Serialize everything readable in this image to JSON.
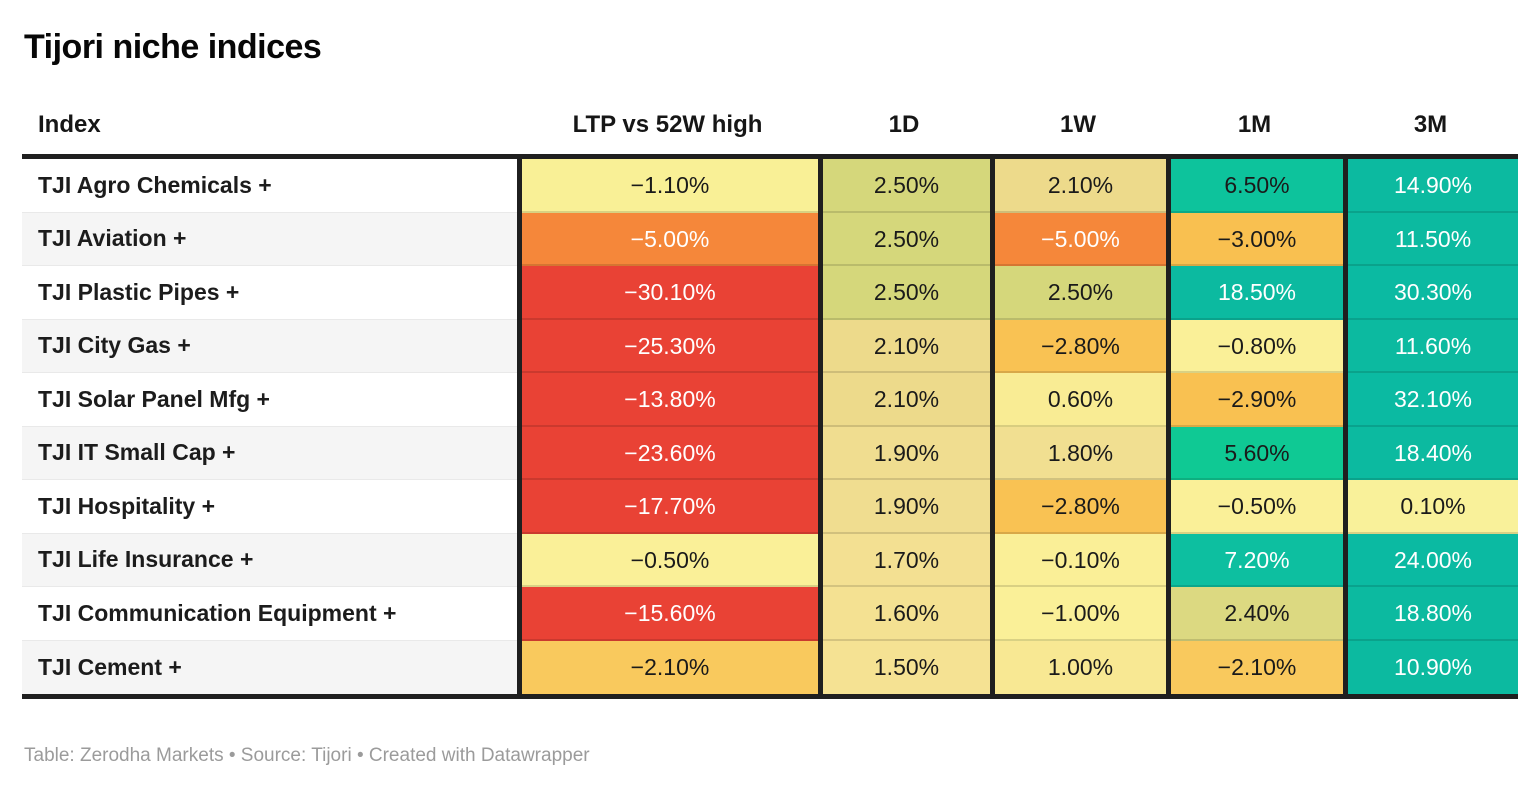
{
  "title": "Tijori niche indices",
  "header": {
    "columns": [
      "Index",
      "LTP vs 52W high",
      "1D",
      "1W",
      "1M",
      "3M"
    ]
  },
  "table": {
    "rows": [
      {
        "name": "TJI Agro Chemicals +",
        "cells": [
          {
            "v": "−1.10%",
            "bg": "#f9f096",
            "fg": "#1a1a1a"
          },
          {
            "v": "2.50%",
            "bg": "#d5d77b",
            "fg": "#1a1a1a"
          },
          {
            "v": "2.10%",
            "bg": "#edda8b",
            "fg": "#1a1a1a"
          },
          {
            "v": "6.50%",
            "bg": "#0dc39c",
            "fg": "#1a1a1a"
          },
          {
            "v": "14.90%",
            "bg": "#0cbaa0",
            "fg": "#ffffff"
          }
        ]
      },
      {
        "name": "TJI Aviation +",
        "cells": [
          {
            "v": "−5.00%",
            "bg": "#f5873a",
            "fg": "#ffffff"
          },
          {
            "v": "2.50%",
            "bg": "#d5d77b",
            "fg": "#1a1a1a"
          },
          {
            "v": "−5.00%",
            "bg": "#f5873a",
            "fg": "#ffffff"
          },
          {
            "v": "−3.00%",
            "bg": "#f9c050",
            "fg": "#1a1a1a"
          },
          {
            "v": "11.50%",
            "bg": "#0cbaa0",
            "fg": "#ffffff"
          }
        ]
      },
      {
        "name": "TJI Plastic Pipes +",
        "cells": [
          {
            "v": "−30.10%",
            "bg": "#e94235",
            "fg": "#ffffff"
          },
          {
            "v": "2.50%",
            "bg": "#d5d77b",
            "fg": "#1a1a1a"
          },
          {
            "v": "2.50%",
            "bg": "#d5d77b",
            "fg": "#1a1a1a"
          },
          {
            "v": "18.50%",
            "bg": "#0cbaa0",
            "fg": "#ffffff"
          },
          {
            "v": "30.30%",
            "bg": "#0bbaa2",
            "fg": "#ffffff"
          }
        ]
      },
      {
        "name": "TJI City Gas +",
        "cells": [
          {
            "v": "−25.30%",
            "bg": "#e94235",
            "fg": "#ffffff"
          },
          {
            "v": "2.10%",
            "bg": "#edda8b",
            "fg": "#1a1a1a"
          },
          {
            "v": "−2.80%",
            "bg": "#f9c253",
            "fg": "#1a1a1a"
          },
          {
            "v": "−0.80%",
            "bg": "#faf098",
            "fg": "#1a1a1a"
          },
          {
            "v": "11.60%",
            "bg": "#0cbaa0",
            "fg": "#ffffff"
          }
        ]
      },
      {
        "name": "TJI Solar Panel Mfg +",
        "cells": [
          {
            "v": "−13.80%",
            "bg": "#e94235",
            "fg": "#ffffff"
          },
          {
            "v": "2.10%",
            "bg": "#edda8b",
            "fg": "#1a1a1a"
          },
          {
            "v": "0.60%",
            "bg": "#f9ec94",
            "fg": "#1a1a1a"
          },
          {
            "v": "−2.90%",
            "bg": "#f9c151",
            "fg": "#1a1a1a"
          },
          {
            "v": "32.10%",
            "bg": "#0bbaa2",
            "fg": "#ffffff"
          }
        ]
      },
      {
        "name": "TJI IT Small Cap +",
        "cells": [
          {
            "v": "−23.60%",
            "bg": "#e94235",
            "fg": "#ffffff"
          },
          {
            "v": "1.90%",
            "bg": "#f0dd90",
            "fg": "#1a1a1a"
          },
          {
            "v": "1.80%",
            "bg": "#f1df91",
            "fg": "#1a1a1a"
          },
          {
            "v": "5.60%",
            "bg": "#0fc994",
            "fg": "#1a1a1a"
          },
          {
            "v": "18.40%",
            "bg": "#0cbaa0",
            "fg": "#ffffff"
          }
        ]
      },
      {
        "name": "TJI Hospitality +",
        "cells": [
          {
            "v": "−17.70%",
            "bg": "#e94235",
            "fg": "#ffffff"
          },
          {
            "v": "1.90%",
            "bg": "#f0dd90",
            "fg": "#1a1a1a"
          },
          {
            "v": "−2.80%",
            "bg": "#f9c253",
            "fg": "#1a1a1a"
          },
          {
            "v": "−0.50%",
            "bg": "#faf098",
            "fg": "#1a1a1a"
          },
          {
            "v": "0.10%",
            "bg": "#f9f19a",
            "fg": "#1a1a1a"
          }
        ]
      },
      {
        "name": "TJI Life Insurance +",
        "cells": [
          {
            "v": "−0.50%",
            "bg": "#faf098",
            "fg": "#1a1a1a"
          },
          {
            "v": "1.70%",
            "bg": "#f3e092",
            "fg": "#1a1a1a"
          },
          {
            "v": "−0.10%",
            "bg": "#faef97",
            "fg": "#1a1a1a"
          },
          {
            "v": "7.20%",
            "bg": "#0dbfa0",
            "fg": "#ffffff"
          },
          {
            "v": "24.00%",
            "bg": "#0bbaa2",
            "fg": "#ffffff"
          }
        ]
      },
      {
        "name": "TJI Communication Equipment +",
        "cells": [
          {
            "v": "−15.60%",
            "bg": "#e94235",
            "fg": "#ffffff"
          },
          {
            "v": "1.60%",
            "bg": "#f4e192",
            "fg": "#1a1a1a"
          },
          {
            "v": "−1.00%",
            "bg": "#faf098",
            "fg": "#1a1a1a"
          },
          {
            "v": "2.40%",
            "bg": "#dcd981",
            "fg": "#1a1a1a"
          },
          {
            "v": "18.80%",
            "bg": "#0cbaa0",
            "fg": "#ffffff"
          }
        ]
      },
      {
        "name": "TJI Cement +",
        "cells": [
          {
            "v": "−2.10%",
            "bg": "#f9c95d",
            "fg": "#1a1a1a"
          },
          {
            "v": "1.50%",
            "bg": "#f5e293",
            "fg": "#1a1a1a"
          },
          {
            "v": "1.00%",
            "bg": "#f8e893",
            "fg": "#1a1a1a"
          },
          {
            "v": "−2.10%",
            "bg": "#f9c95d",
            "fg": "#1a1a1a"
          },
          {
            "v": "10.90%",
            "bg": "#0cbaa0",
            "fg": "#ffffff"
          }
        ]
      }
    ]
  },
  "footer": {
    "text": "Table: Zerodha Markets • Source: Tijori • Created with Datawrapper"
  },
  "chart_data": {
    "type": "table",
    "title": "Tijori niche indices",
    "columns": [
      "Index",
      "LTP vs 52W high",
      "1D",
      "1W",
      "1M",
      "3M"
    ],
    "units": "percent",
    "color_scale": "red-yellow-green heatmap on value cells",
    "rows": [
      {
        "index": "TJI Agro Chemicals +",
        "ltp_vs_52w_high": -1.1,
        "d1": 2.5,
        "w1": 2.1,
        "m1": 6.5,
        "m3": 14.9
      },
      {
        "index": "TJI Aviation +",
        "ltp_vs_52w_high": -5.0,
        "d1": 2.5,
        "w1": -5.0,
        "m1": -3.0,
        "m3": 11.5
      },
      {
        "index": "TJI Plastic Pipes +",
        "ltp_vs_52w_high": -30.1,
        "d1": 2.5,
        "w1": 2.5,
        "m1": 18.5,
        "m3": 30.3
      },
      {
        "index": "TJI City Gas +",
        "ltp_vs_52w_high": -25.3,
        "d1": 2.1,
        "w1": -2.8,
        "m1": -0.8,
        "m3": 11.6
      },
      {
        "index": "TJI Solar Panel Mfg +",
        "ltp_vs_52w_high": -13.8,
        "d1": 2.1,
        "w1": 0.6,
        "m1": -2.9,
        "m3": 32.1
      },
      {
        "index": "TJI IT Small Cap +",
        "ltp_vs_52w_high": -23.6,
        "d1": 1.9,
        "w1": 1.8,
        "m1": 5.6,
        "m3": 18.4
      },
      {
        "index": "TJI Hospitality +",
        "ltp_vs_52w_high": -17.7,
        "d1": 1.9,
        "w1": -2.8,
        "m1": -0.5,
        "m3": 0.1
      },
      {
        "index": "TJI Life Insurance +",
        "ltp_vs_52w_high": -0.5,
        "d1": 1.7,
        "w1": -0.1,
        "m1": 7.2,
        "m3": 24.0
      },
      {
        "index": "TJI Communication Equipment +",
        "ltp_vs_52w_high": -15.6,
        "d1": 1.6,
        "w1": -1.0,
        "m1": 2.4,
        "m3": 18.8
      },
      {
        "index": "TJI Cement +",
        "ltp_vs_52w_high": -2.1,
        "d1": 1.5,
        "w1": 1.0,
        "m1": -2.1,
        "m3": 10.9
      }
    ]
  }
}
